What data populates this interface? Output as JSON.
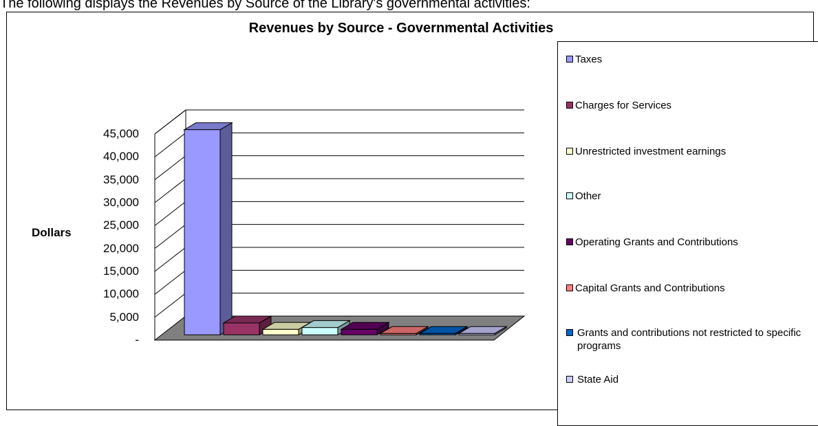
{
  "intro_text": "The following displays the Revenues by Source of the Library's governmental activities:",
  "chart_data": {
    "type": "bar",
    "title": "Revenues by Source - Governmental Activities",
    "xlabel": "",
    "ylabel": "Dollars",
    "ylim": [
      0,
      45000
    ],
    "yticks": [
      "-",
      "5,000",
      "10,000",
      "15,000",
      "20,000",
      "25,000",
      "30,000",
      "35,000",
      "40,000",
      "45,000"
    ],
    "grid": true,
    "legend_position": "right",
    "categories": [
      "Taxes",
      "Charges for Services",
      "Unrestricted investment earnings",
      "Other",
      "Operating Grants and Contributions",
      "Capital Grants and Contributions",
      "Grants and contributions not restricted to specific programs",
      "State Aid"
    ],
    "values": [
      44800,
      2600,
      1200,
      1600,
      1200,
      300,
      300,
      300
    ],
    "colors": [
      "#9999ff",
      "#993366",
      "#ffffcc",
      "#ccffff",
      "#660066",
      "#ff8080",
      "#0066cc",
      "#ccccff"
    ]
  }
}
